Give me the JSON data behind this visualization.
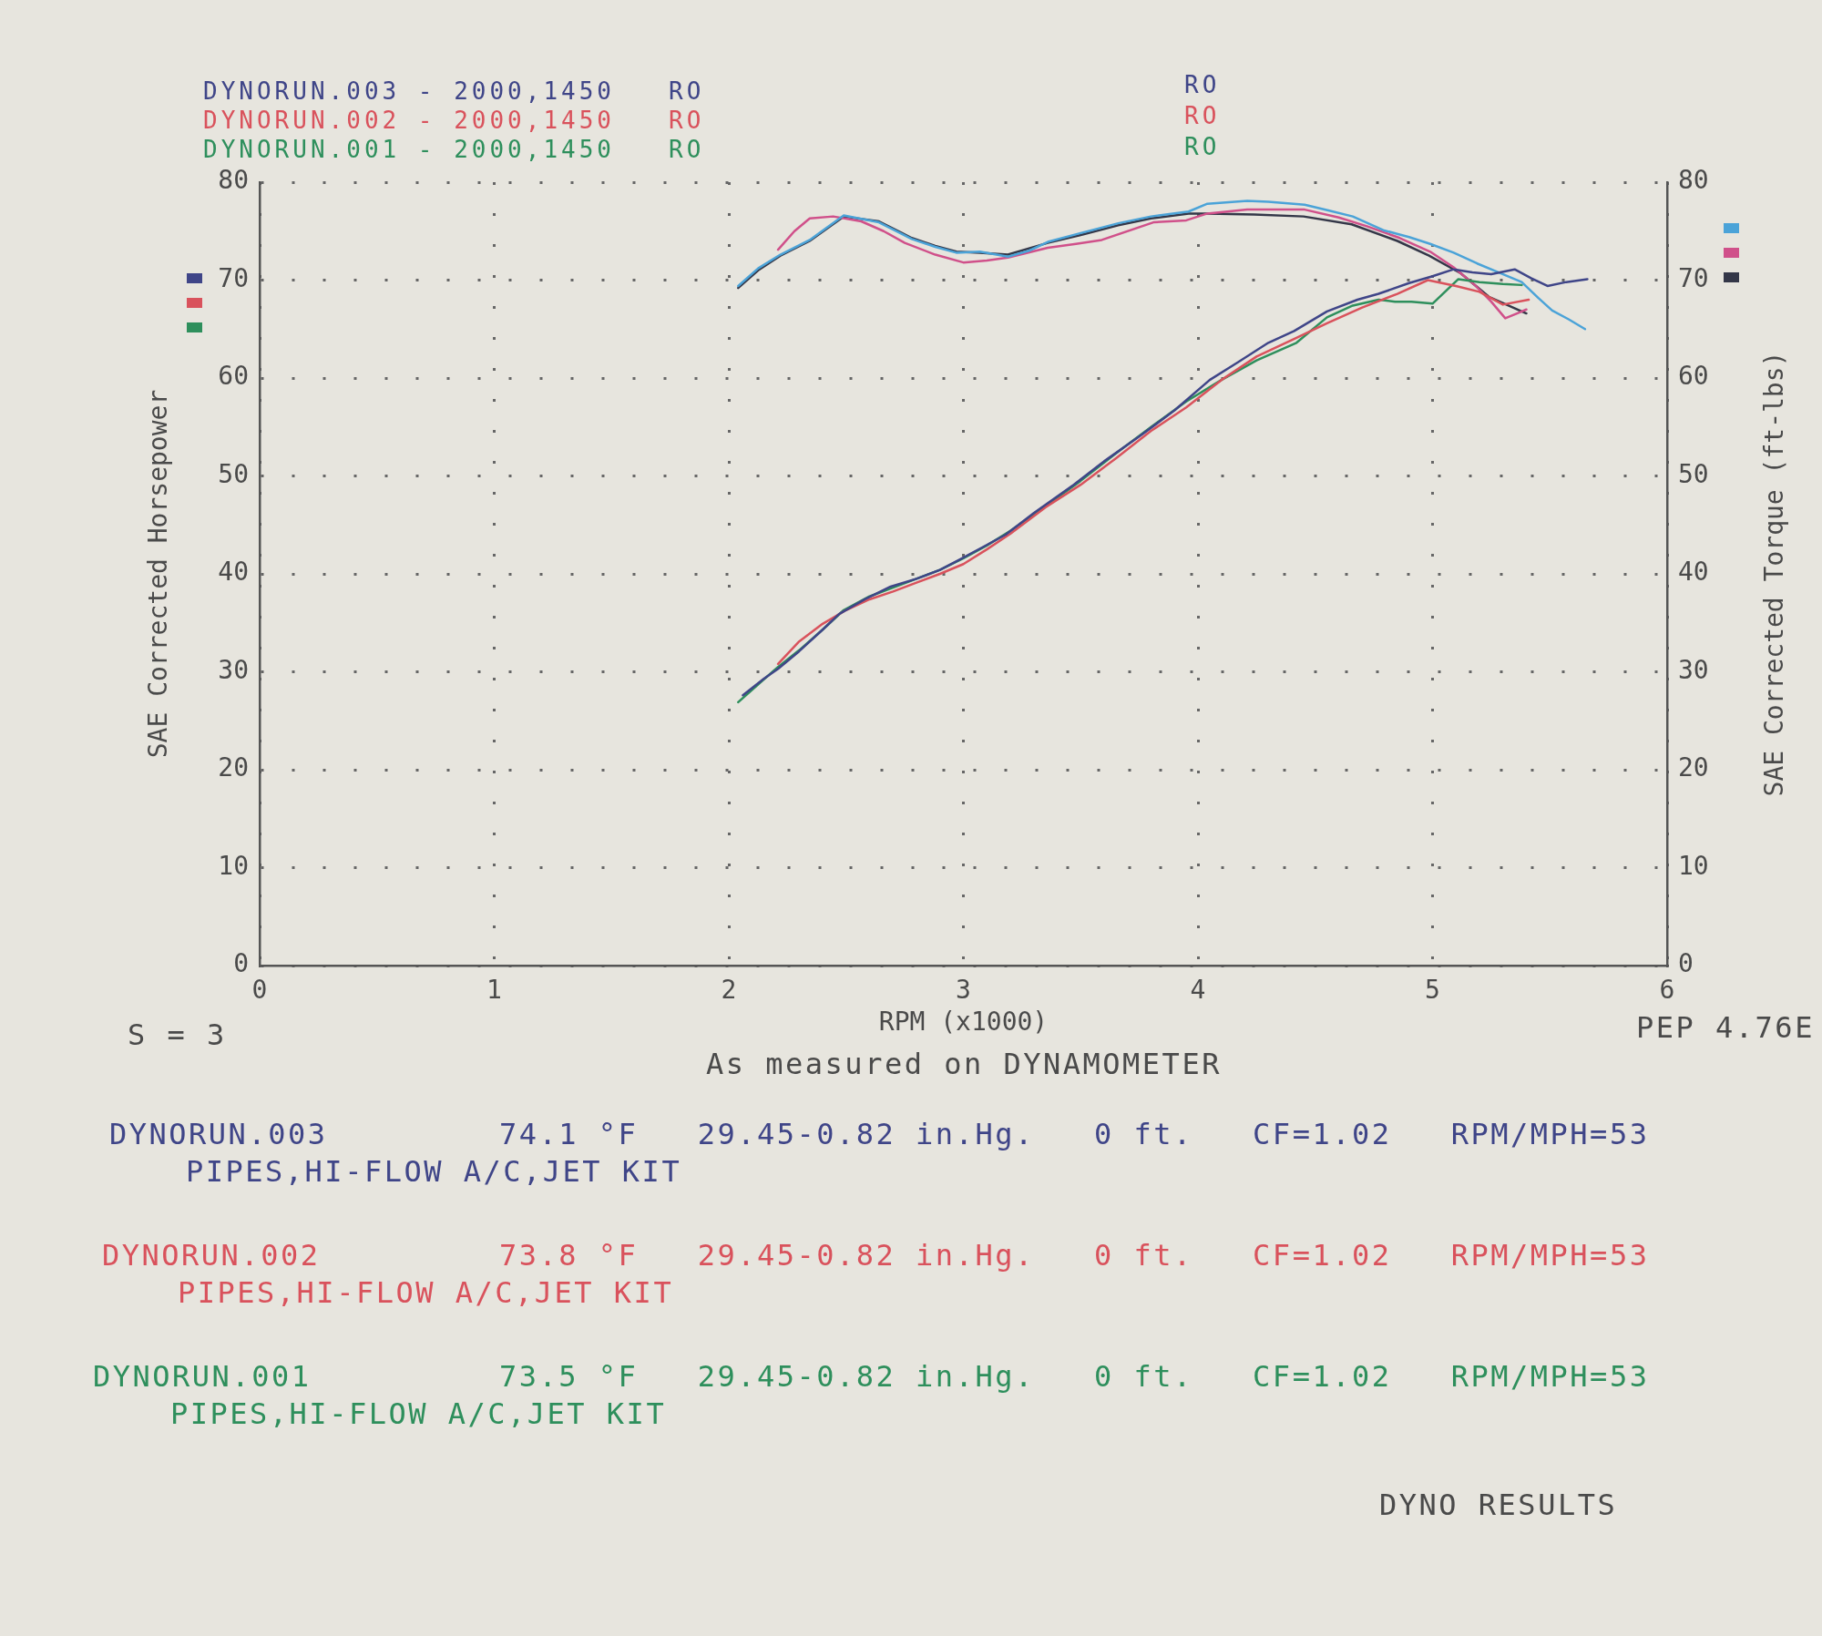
{
  "chart_data": {
    "type": "line",
    "xlabel": "RPM (x1000)",
    "ylabel": "SAE Corrected Horsepower",
    "y2label": "SAE Corrected Torque (ft-lbs)",
    "xlim": [
      0,
      6
    ],
    "xticks": [
      0,
      1,
      2,
      3,
      4,
      5,
      6
    ],
    "ylim": [
      0,
      80
    ],
    "yticks": [
      0,
      10,
      20,
      30,
      40,
      50,
      60,
      70,
      80
    ],
    "y2lim": [
      0,
      80
    ],
    "y2ticks": [
      0,
      10,
      20,
      30,
      40,
      50,
      60,
      70,
      80
    ],
    "grid": true,
    "legend": "top left",
    "marker": "none",
    "line_style": "solid",
    "series": [
      {
        "name": "DYNORUN.003 - 2000,1450   RO",
        "color": "#3f4588",
        "x": [
          2.06,
          2.15,
          2.21,
          2.3,
          2.4,
          2.47,
          2.58,
          2.69,
          2.8,
          2.9,
          2.98,
          3.08,
          3.18,
          3.3,
          3.47,
          3.6,
          3.76,
          3.9,
          4.05,
          4.17,
          4.3,
          4.41,
          4.55,
          4.68,
          4.77,
          4.9,
          5.0,
          5.09,
          5.17,
          5.25,
          5.35,
          5.42,
          5.49,
          5.57,
          5.66
        ],
        "values": [
          27.6,
          29.3,
          30.3,
          32.1,
          34.3,
          35.9,
          37.4,
          38.7,
          39.5,
          40.4,
          41.4,
          42.7,
          44.0,
          46.2,
          49.1,
          51.5,
          54.2,
          56.7,
          59.8,
          61.6,
          63.6,
          64.8,
          66.8,
          68.0,
          68.6,
          69.7,
          70.4,
          71.1,
          70.8,
          70.6,
          71.1,
          70.2,
          69.4,
          69.8,
          70.1
        ]
      },
      {
        "name": "DYNORUN.002 - 2000,1450   RO",
        "color": "#d9525c",
        "x": [
          2.21,
          2.3,
          2.4,
          2.5,
          2.6,
          2.7,
          2.8,
          2.9,
          3.0,
          3.1,
          3.2,
          3.35,
          3.5,
          3.65,
          3.8,
          3.95,
          4.1,
          4.25,
          4.42,
          4.55,
          4.7,
          4.85,
          4.98,
          5.1,
          5.2,
          5.3,
          5.41
        ],
        "values": [
          30.8,
          33.1,
          34.9,
          36.3,
          37.4,
          38.2,
          39.1,
          40.0,
          41.0,
          42.5,
          44.1,
          46.8,
          49.1,
          51.8,
          54.6,
          57.0,
          59.8,
          62.2,
          64.1,
          65.6,
          67.2,
          68.6,
          70.0,
          69.4,
          68.8,
          67.5,
          68.0
        ]
      },
      {
        "name": "DYNORUN.001 - 2000,1450   RO",
        "color": "#2e8f5c",
        "x": [
          2.04,
          2.12,
          2.21,
          2.3,
          2.4,
          2.49,
          2.6,
          2.7,
          2.8,
          2.9,
          3.0,
          3.1,
          3.2,
          3.35,
          3.5,
          3.65,
          3.8,
          3.95,
          4.1,
          4.25,
          4.42,
          4.55,
          4.66,
          4.77,
          4.84,
          4.91,
          5.0,
          5.11,
          5.2,
          5.3,
          5.38
        ],
        "values": [
          26.9,
          28.6,
          30.5,
          32.2,
          34.3,
          36.3,
          37.7,
          38.6,
          39.5,
          40.4,
          41.6,
          42.9,
          44.4,
          46.9,
          49.5,
          52.3,
          55.0,
          57.6,
          59.8,
          61.8,
          63.6,
          66.2,
          67.4,
          68.0,
          67.8,
          67.8,
          67.6,
          70.1,
          69.8,
          69.6,
          69.5
        ]
      },
      {
        "color": "#4ba3d8",
        "axis": "y2",
        "x": [
          2.04,
          2.125,
          2.22,
          2.345,
          2.49,
          2.64,
          2.78,
          2.88,
          2.97,
          3.07,
          3.19,
          3.28,
          3.36,
          3.5,
          3.66,
          3.8,
          3.96,
          4.04,
          4.21,
          4.3,
          4.455,
          4.56,
          4.66,
          4.79,
          4.9,
          4.99,
          5.09,
          5.19,
          5.28,
          5.38,
          5.45,
          5.51,
          5.58,
          5.65
        ],
        "values": [
          69.4,
          71.2,
          72.6,
          74.1,
          76.6,
          75.9,
          74.2,
          73.4,
          72.8,
          72.9,
          72.4,
          73.0,
          73.9,
          74.8,
          75.8,
          76.5,
          77.0,
          77.8,
          78.1,
          78.0,
          77.7,
          77.1,
          76.5,
          75.1,
          74.4,
          73.7,
          72.8,
          71.7,
          70.8,
          69.8,
          68.2,
          66.9,
          66.0,
          65.0
        ]
      },
      {
        "color": "#d0508a",
        "axis": "y2",
        "x": [
          2.21,
          2.28,
          2.345,
          2.445,
          2.565,
          2.66,
          2.75,
          2.88,
          3.0,
          3.1,
          3.19,
          3.36,
          3.48,
          3.59,
          3.81,
          3.95,
          4.04,
          4.21,
          4.33,
          4.455,
          4.6,
          4.72,
          4.86,
          4.99,
          5.09,
          5.18,
          5.25,
          5.31,
          5.36,
          5.4
        ],
        "values": [
          73.1,
          75.0,
          76.3,
          76.5,
          76.0,
          75.0,
          73.8,
          72.6,
          71.8,
          72.0,
          72.3,
          73.3,
          73.7,
          74.1,
          75.9,
          76.1,
          76.8,
          77.2,
          77.2,
          77.2,
          76.4,
          75.5,
          74.3,
          72.9,
          71.3,
          69.5,
          67.8,
          66.1,
          66.6,
          67.0
        ]
      },
      {
        "color": "#343748",
        "axis": "y2",
        "x": [
          2.04,
          2.125,
          2.22,
          2.345,
          2.49,
          2.64,
          2.78,
          2.88,
          2.97,
          3.07,
          3.19,
          3.36,
          3.5,
          3.66,
          3.8,
          3.96,
          4.04,
          4.24,
          4.45,
          4.655,
          4.85,
          4.985,
          5.12,
          5.24,
          5.4
        ],
        "values": [
          69.2,
          71.0,
          72.5,
          74.0,
          76.5,
          76.0,
          74.3,
          73.5,
          72.9,
          72.8,
          72.6,
          73.8,
          74.6,
          75.6,
          76.3,
          76.8,
          76.8,
          76.7,
          76.5,
          75.7,
          74.0,
          72.5,
          70.7,
          68.3,
          66.6
        ]
      }
    ],
    "annotations": [
      "RO",
      "RO",
      "RO",
      "S = 3",
      "PEP 4.76E",
      "As measured on DYNAMOMETER",
      "DYNORUN.003",
      "74.1 °F   29.45-0.82 in.Hg.   0 ft.   CF=1.02   RPM/MPH=53",
      "PIPES,HI-FLOW A/C,JET KIT",
      "DYNORUN.002",
      "73.8 °F   29.45-0.82 in.Hg.   0 ft.   CF=1.02   RPM/MPH=53",
      "PIPES,HI-FLOW A/C,JET KIT",
      "DYNORUN.001",
      "73.5 °F   29.45-0.82 in.Hg.   0 ft.   CF=1.02   RPM/MPH=53",
      "PIPES,HI-FLOW A/C,JET KIT",
      "DYNO RESULTS"
    ]
  }
}
